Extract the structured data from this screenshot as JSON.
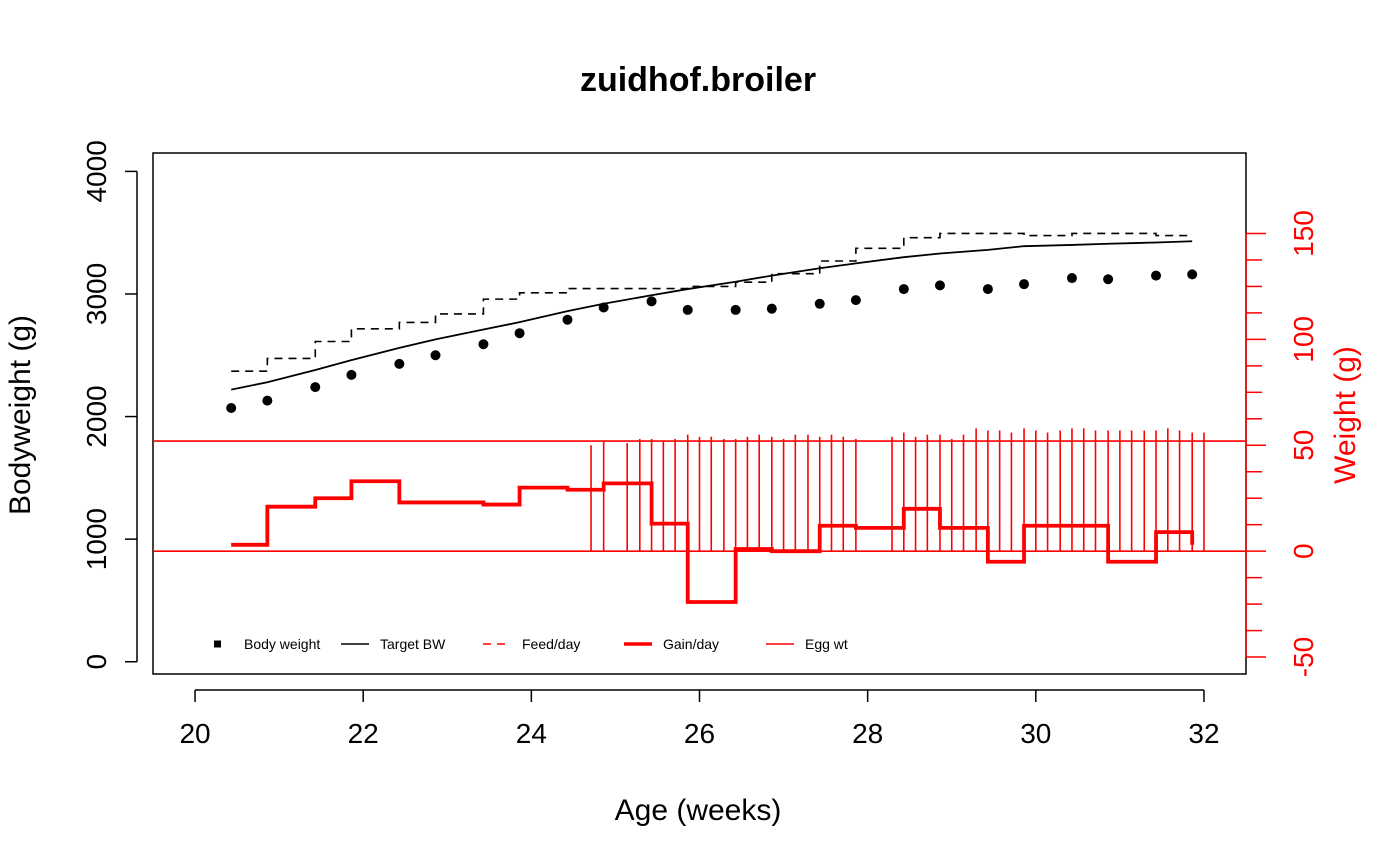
{
  "chart_data": {
    "type": "line",
    "title": "zuidhof.broiler",
    "xlabel": "Age (weeks)",
    "ylabel": "Bodyweight (g)",
    "y2label": "Weight (g)",
    "xlim": [
      19.5,
      32.5
    ],
    "ylim": [
      -100,
      4150
    ],
    "y2lim": [
      -58,
      188
    ],
    "xticks": [
      20,
      22,
      24,
      26,
      28,
      30,
      32
    ],
    "yticks": [
      0,
      1000,
      2000,
      3000,
      4000
    ],
    "y2ticks": [
      -50,
      0,
      50,
      100,
      150
    ],
    "legend_position": "bottom-left",
    "colors": {
      "primary": "#000000",
      "secondary": "#ff0000"
    },
    "series": [
      {
        "name": "Body weight",
        "axis": "left",
        "style": "points",
        "x": [
          20.43,
          20.86,
          21.43,
          21.86,
          22.43,
          22.86,
          23.43,
          23.86,
          24.43,
          24.86,
          25.43,
          25.86,
          26.43,
          26.86,
          27.43,
          27.86,
          28.43,
          28.86,
          29.43,
          29.86,
          30.43,
          30.86,
          31.43,
          31.86
        ],
        "values": [
          2070,
          2130,
          2240,
          2340,
          2430,
          2500,
          2590,
          2680,
          2790,
          2890,
          2940,
          2870,
          2870,
          2880,
          2920,
          2950,
          3040,
          3070,
          3040,
          3080,
          3130,
          3120,
          3150,
          3160
        ]
      },
      {
        "name": "Target BW",
        "axis": "left",
        "style": "line",
        "x": [
          20.43,
          20.86,
          21.43,
          21.86,
          22.43,
          22.86,
          23.43,
          23.86,
          24.43,
          24.86,
          25.43,
          25.86,
          26.43,
          26.86,
          27.43,
          27.86,
          28.43,
          28.86,
          29.43,
          29.86,
          30.43,
          30.86,
          31.43,
          31.86
        ],
        "values": [
          2220,
          2280,
          2380,
          2460,
          2560,
          2630,
          2710,
          2770,
          2860,
          2920,
          2990,
          3040,
          3100,
          3150,
          3210,
          3250,
          3300,
          3330,
          3360,
          3390,
          3400,
          3410,
          3420,
          3430
        ]
      },
      {
        "name": "Feed/day",
        "axis": "right",
        "style": "step-dashed",
        "x": [
          20.43,
          20.86,
          21.43,
          21.86,
          22.43,
          22.86,
          23.43,
          23.86,
          24.43,
          24.86,
          25.43,
          25.86,
          26.43,
          26.86,
          27.43,
          27.86,
          28.43,
          28.86,
          29.43,
          29.86,
          30.43,
          30.86,
          31.43,
          31.86
        ],
        "values": [
          85,
          91,
          99,
          105,
          108,
          112,
          119,
          122,
          124,
          124,
          124,
          125,
          127,
          131,
          137,
          143,
          148,
          150,
          150,
          149,
          150,
          150,
          149,
          149
        ]
      },
      {
        "name": "Gain/day",
        "axis": "right",
        "style": "step-thick",
        "x": [
          20.43,
          20.86,
          21.43,
          21.86,
          22.43,
          22.86,
          23.43,
          23.86,
          24.43,
          24.86,
          25.43,
          25.86,
          26.43,
          26.86,
          27.43,
          27.86,
          28.43,
          28.86,
          29.43,
          29.86,
          30.43,
          30.86,
          31.43,
          31.86
        ],
        "values": [
          3,
          21,
          25,
          33,
          23,
          23,
          22,
          30,
          29,
          32,
          13,
          -24,
          1,
          0,
          12,
          11,
          20,
          11,
          -5,
          12,
          12,
          -5,
          9,
          3
        ]
      },
      {
        "name": "Egg wt",
        "axis": "right",
        "style": "vertical-lines",
        "x": [
          24.71,
          24.86,
          25.14,
          25.29,
          25.43,
          25.57,
          25.71,
          25.86,
          26.0,
          26.14,
          26.29,
          26.43,
          26.57,
          26.71,
          26.86,
          27.0,
          27.14,
          27.29,
          27.43,
          27.57,
          27.71,
          27.86,
          28.29,
          28.43,
          28.57,
          28.71,
          28.86,
          29.0,
          29.14,
          29.29,
          29.43,
          29.57,
          29.71,
          29.86,
          30.0,
          30.14,
          30.29,
          30.43,
          30.57,
          30.71,
          30.86,
          31.0,
          31.14,
          31.29,
          31.43,
          31.57,
          31.71,
          31.86,
          32.0
        ],
        "values": [
          50,
          52,
          51,
          53,
          53,
          52,
          53,
          55,
          54,
          54,
          53,
          53,
          54,
          55,
          54,
          53,
          55,
          55,
          54,
          55,
          54,
          53,
          54,
          56,
          54,
          55,
          55,
          53,
          55,
          58,
          57,
          57,
          56,
          58,
          57,
          56,
          57,
          58,
          58,
          57,
          57,
          57,
          57,
          57,
          57,
          58,
          57,
          56,
          56
        ]
      }
    ],
    "reference_lines": {
      "axis": "right",
      "values": [
        0,
        52
      ]
    },
    "legend": [
      {
        "name": "Body weight",
        "style": "point",
        "color": "#000000"
      },
      {
        "name": "Target BW",
        "style": "solid",
        "color": "#000000"
      },
      {
        "name": "Feed/day",
        "style": "dashed",
        "color": "#ff0000"
      },
      {
        "name": "Gain/day",
        "style": "thick",
        "color": "#ff0000"
      },
      {
        "name": "Egg wt",
        "style": "solid",
        "color": "#ff0000"
      }
    ]
  }
}
